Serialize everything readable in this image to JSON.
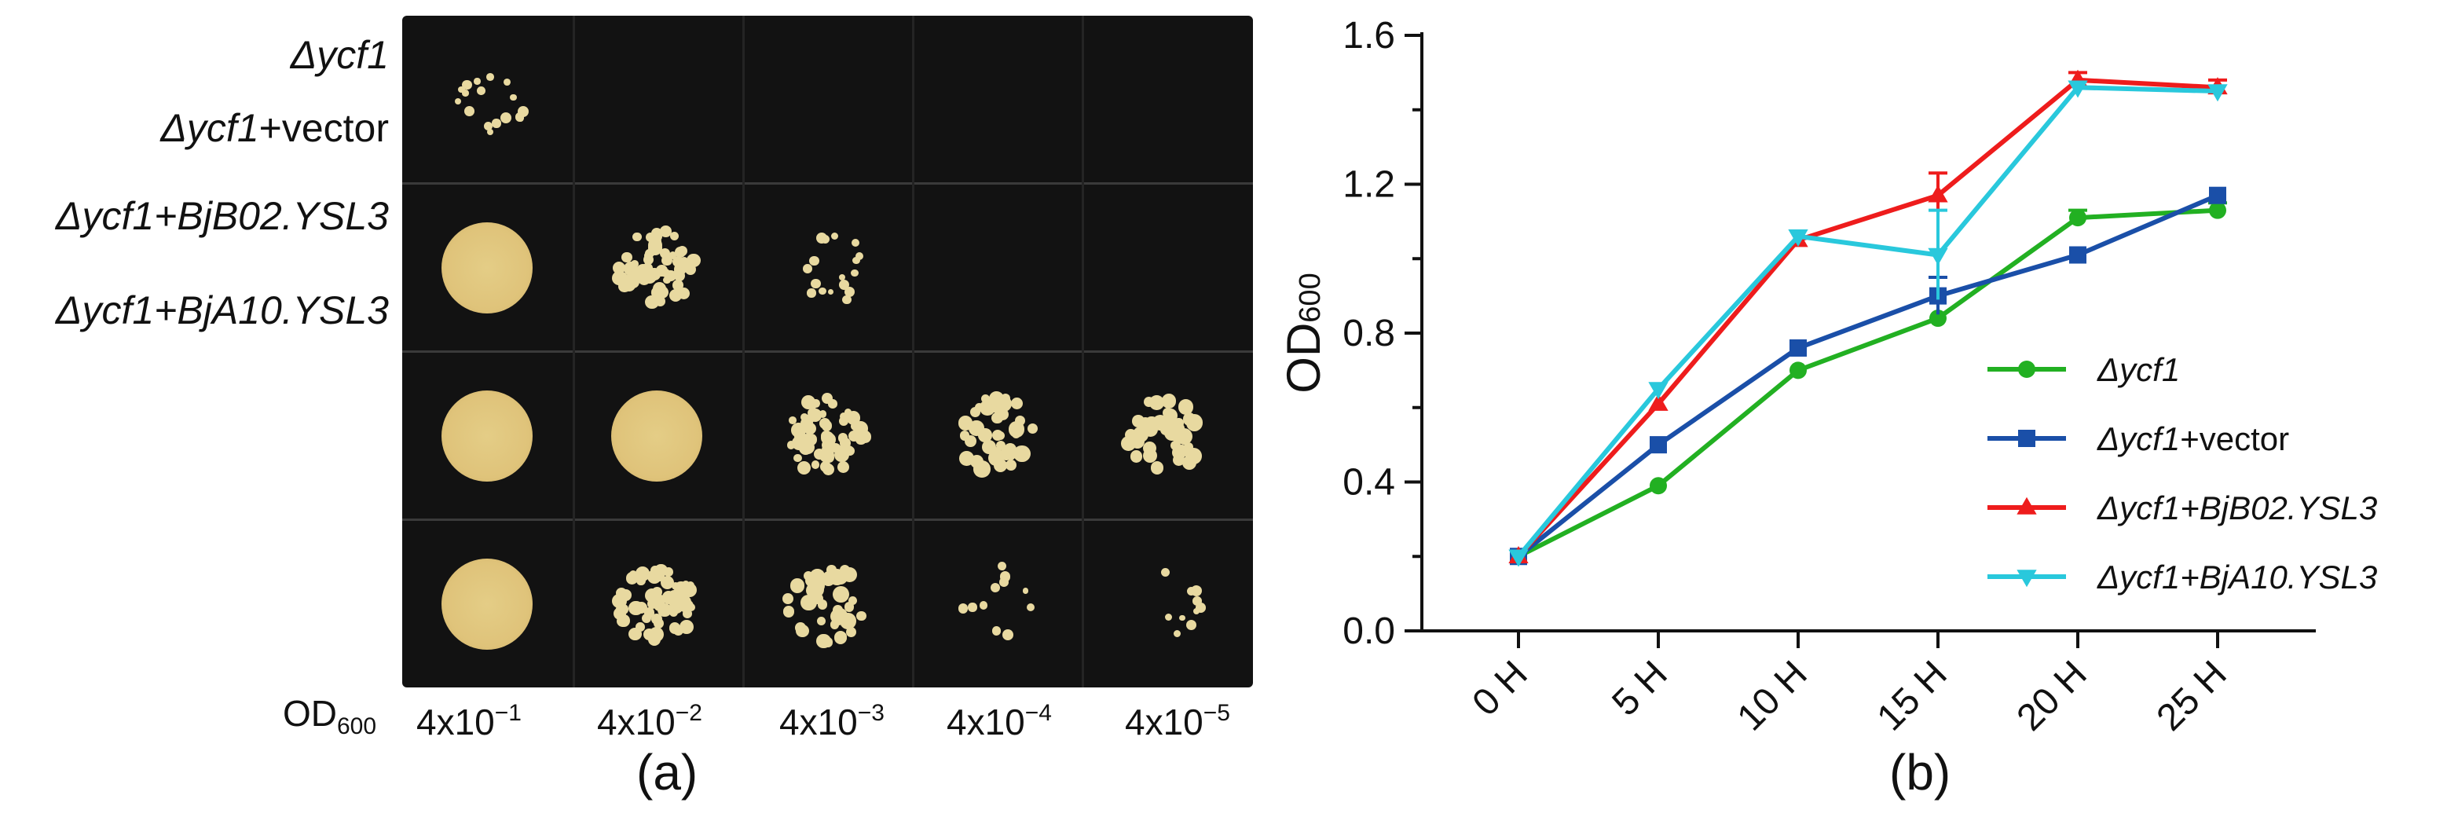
{
  "panel_a": {
    "letter": "(a)",
    "od_label": {
      "main": "OD",
      "sub": "600"
    },
    "dilutions": [
      {
        "base": "4x10",
        "exp": "−1"
      },
      {
        "base": "4x10",
        "exp": "−2"
      },
      {
        "base": "4x10",
        "exp": "−3"
      },
      {
        "base": "4x10",
        "exp": "−4"
      },
      {
        "base": "4x10",
        "exp": "−5"
      }
    ],
    "rows": [
      {
        "italic": "Δycf1",
        "plain": ""
      },
      {
        "italic": "Δycf1",
        "plain": "+vector"
      },
      {
        "italic": "Δycf1+BjB02.YSL3",
        "plain": ""
      },
      {
        "italic": "Δycf1+BjA10.YSL3",
        "plain": ""
      }
    ],
    "growth_levels": [
      [
        0.15,
        0,
        0,
        0,
        0
      ],
      [
        1,
        0.8,
        0.15,
        0,
        0
      ],
      [
        1,
        1,
        0.75,
        0.5,
        0.5
      ],
      [
        1,
        0.85,
        0.45,
        0.08,
        0.05
      ]
    ]
  },
  "chart_data": {
    "type": "line",
    "panel_letter": "(b)",
    "title": "",
    "xlabel": "",
    "ylabel": {
      "main": "OD",
      "sub": "600"
    },
    "categories": [
      "0 H",
      "5 H",
      "10 H",
      "15 H",
      "20 H",
      "25 H"
    ],
    "ylim": [
      0,
      1.6
    ],
    "yticks": [
      "0.0",
      "0.4",
      "0.8",
      "1.2",
      "1.6"
    ],
    "ytick_values": [
      0,
      0.4,
      0.8,
      1.2,
      1.6
    ],
    "grid": false,
    "legend_position": "right",
    "series": [
      {
        "name": {
          "italic": "Δycf1",
          "plain": ""
        },
        "color": "#22b022",
        "marker": "circle",
        "values": [
          0.2,
          0.39,
          0.7,
          0.84,
          1.11,
          1.13
        ],
        "errors": [
          0.01,
          0.01,
          0.01,
          0.01,
          0.02,
          0.02
        ]
      },
      {
        "name": {
          "italic": "Δycf1",
          "plain": "+vector"
        },
        "color": "#1a4fa8",
        "marker": "square",
        "values": [
          0.2,
          0.5,
          0.76,
          0.9,
          1.01,
          1.17
        ],
        "errors": [
          0.01,
          0.01,
          0.01,
          0.05,
          0.01,
          0.01
        ]
      },
      {
        "name": {
          "italic": "Δycf1+BjB02.YSL3",
          "plain": ""
        },
        "color": "#ee1c1c",
        "marker": "triangle",
        "values": [
          0.2,
          0.61,
          1.05,
          1.17,
          1.48,
          1.46
        ],
        "errors": [
          0.01,
          0.01,
          0.01,
          0.06,
          0.02,
          0.02
        ]
      },
      {
        "name": {
          "italic": "Δycf1+BjA10.YSL3",
          "plain": ""
        },
        "color": "#29c8dc",
        "marker": "triangle-down",
        "values": [
          0.2,
          0.65,
          1.06,
          1.01,
          1.46,
          1.45
        ],
        "errors": [
          0.01,
          0.01,
          0.01,
          0.12,
          0.01,
          0.01
        ]
      }
    ]
  },
  "colors": {
    "plate": "#121212",
    "colony": "#e8d9a0",
    "spot": "#dfc37a"
  }
}
